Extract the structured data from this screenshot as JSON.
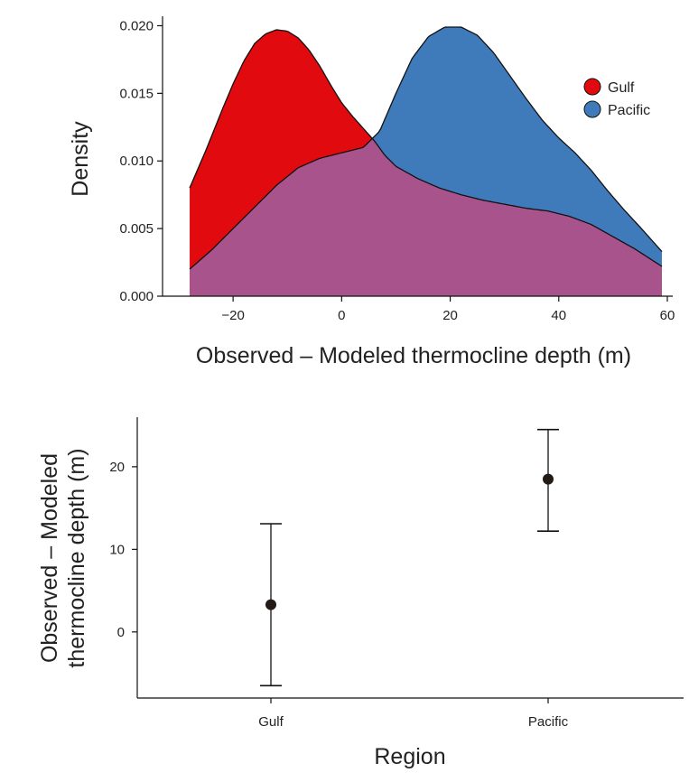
{
  "colors": {
    "gulf": "#e10a0f",
    "pacific": "#3f7bbb",
    "overlap": "#a9538c",
    "axis": "#111111",
    "point": "#231a16"
  },
  "chart_data": [
    {
      "type": "area",
      "title": "",
      "xlabel": "Observed – Modeled thermocline depth (m)",
      "ylabel": "Density",
      "xlim": [
        -33,
        61
      ],
      "ylim": [
        0,
        0.0207
      ],
      "xticks": [
        -20,
        0,
        20,
        40,
        60
      ],
      "xtick_labels": [
        "−20",
        "0",
        "20",
        "40",
        "60"
      ],
      "yticks": [
        0,
        0.005,
        0.01,
        0.015,
        0.02
      ],
      "ytick_labels": [
        "0.000",
        "0.005",
        "0.010",
        "0.015",
        "0.020"
      ],
      "legend_position": "top-right",
      "series": [
        {
          "name": "Gulf",
          "x": [
            -28,
            -25,
            -22,
            -20,
            -18,
            -16,
            -14,
            -12,
            -10,
            -8,
            -6,
            -4,
            -2,
            0,
            2,
            4,
            6,
            8,
            10,
            14,
            18,
            22,
            26,
            30,
            34,
            38,
            42,
            46,
            50,
            54,
            59
          ],
          "values": [
            0.008,
            0.0108,
            0.0138,
            0.0157,
            0.0174,
            0.0187,
            0.0194,
            0.0197,
            0.0196,
            0.0191,
            0.0182,
            0.017,
            0.0156,
            0.0143,
            0.0133,
            0.0124,
            0.0115,
            0.0104,
            0.0096,
            0.0087,
            0.008,
            0.0075,
            0.0071,
            0.0068,
            0.0065,
            0.0063,
            0.0059,
            0.0053,
            0.0044,
            0.0035,
            0.0022
          ]
        },
        {
          "name": "Pacific",
          "x": [
            -28,
            -24,
            -20,
            -16,
            -12,
            -8,
            -4,
            0,
            4,
            7,
            10,
            13,
            16,
            19,
            22,
            25,
            28,
            31,
            34,
            37,
            40,
            43,
            46,
            49,
            52,
            55,
            59
          ],
          "values": [
            0.002,
            0.0034,
            0.005,
            0.0066,
            0.0082,
            0.0095,
            0.0102,
            0.0106,
            0.011,
            0.0122,
            0.015,
            0.0176,
            0.0192,
            0.0199,
            0.0199,
            0.0193,
            0.018,
            0.0163,
            0.0146,
            0.013,
            0.0117,
            0.0106,
            0.0093,
            0.0078,
            0.0064,
            0.0051,
            0.0033
          ]
        }
      ]
    },
    {
      "type": "scatter",
      "title": "",
      "xlabel": "Region",
      "ylabel": [
        "Observed – Modeled",
        "thermocline depth (m)"
      ],
      "categories": [
        "Gulf",
        "Pacific"
      ],
      "ylim": [
        -8,
        26
      ],
      "yticks": [
        0,
        10,
        20
      ],
      "ytick_labels": [
        "0",
        "10",
        "20"
      ],
      "series": [
        {
          "name": "Mean with error bars",
          "values": [
            3.3,
            18.5
          ],
          "lower": [
            -6.5,
            12.2
          ],
          "upper": [
            13.1,
            24.5
          ]
        }
      ]
    }
  ]
}
